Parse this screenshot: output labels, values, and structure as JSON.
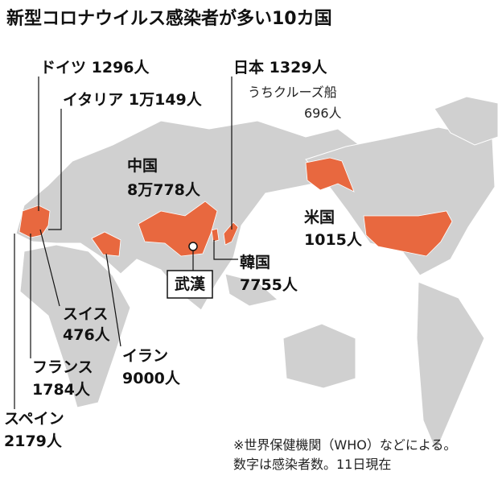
{
  "title": "新型コロナウイルス感染者が多い10カ国",
  "countries": [
    {
      "name": "ドイツ",
      "count": "1296人"
    },
    {
      "name": "イタリア",
      "count": "1万149人"
    },
    {
      "name": "日本",
      "count": "1329人",
      "sub": "うちクルーズ船",
      "sub_count": "696人"
    },
    {
      "name": "中国",
      "count": "8万778人"
    },
    {
      "name": "米国",
      "count": "1015人"
    },
    {
      "name": "韓国",
      "count": "7755人"
    },
    {
      "name": "スイス",
      "count": "476人"
    },
    {
      "name": "イラン",
      "count": "9000人"
    },
    {
      "name": "フランス",
      "count": "1784人"
    },
    {
      "name": "スペイン",
      "count": "2179人"
    }
  ],
  "city": "武漢",
  "notes": [
    "※世界保健機関（WHO）などによる。",
    "数字は感染者数。11日現在"
  ]
}
